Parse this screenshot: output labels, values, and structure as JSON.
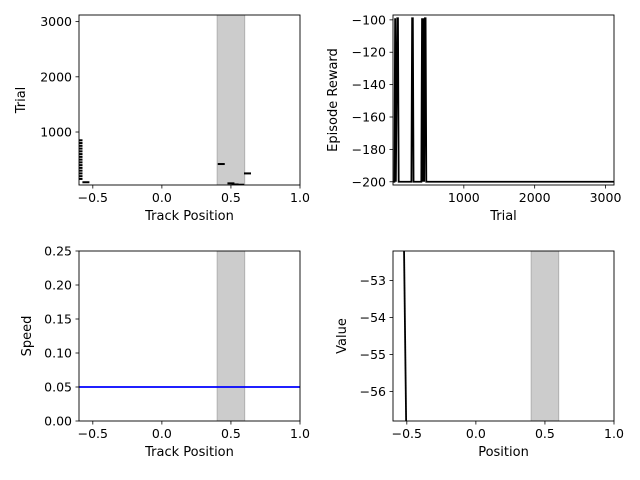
{
  "chart_data": [
    {
      "id": "trial-vs-position",
      "type": "scatter",
      "xlabel": "Track Position",
      "ylabel": "Trial",
      "xlim": [
        -0.6,
        1.0
      ],
      "ylim": [
        40,
        3120
      ],
      "xticks": [
        -0.5,
        0.0,
        0.5,
        1.0
      ],
      "xtick_labels": [
        "−0.5",
        "0.0",
        "0.5",
        "1.0"
      ],
      "yticks": [
        1000,
        2000,
        3000
      ],
      "ytick_labels": [
        "1000",
        "2000",
        "3000"
      ],
      "goal_region": [
        0.4,
        0.6
      ],
      "goal_color": "#cccccc",
      "color": "#000000",
      "points": [
        {
          "x": -0.6,
          "y": 850
        },
        {
          "x": -0.6,
          "y": 800
        },
        {
          "x": -0.6,
          "y": 750
        },
        {
          "x": -0.6,
          "y": 700
        },
        {
          "x": -0.6,
          "y": 650
        },
        {
          "x": -0.6,
          "y": 600
        },
        {
          "x": -0.6,
          "y": 550
        },
        {
          "x": -0.6,
          "y": 500
        },
        {
          "x": -0.6,
          "y": 450
        },
        {
          "x": -0.6,
          "y": 400
        },
        {
          "x": -0.6,
          "y": 350
        },
        {
          "x": -0.6,
          "y": 300
        },
        {
          "x": -0.6,
          "y": 250
        },
        {
          "x": -0.6,
          "y": 200
        },
        {
          "x": -0.6,
          "y": 150
        },
        {
          "x": -0.55,
          "y": 90
        },
        {
          "x": 0.43,
          "y": 420
        },
        {
          "x": 0.5,
          "y": 70
        },
        {
          "x": 0.53,
          "y": 50
        },
        {
          "x": 0.57,
          "y": 45
        },
        {
          "x": 0.62,
          "y": 250
        }
      ]
    },
    {
      "id": "reward-vs-trial",
      "type": "line",
      "xlabel": "Trial",
      "ylabel": "Episode Reward",
      "xlim": [
        0,
        3120
      ],
      "ylim": [
        -202,
        -97
      ],
      "xticks": [
        1000,
        2000,
        3000
      ],
      "xtick_labels": [
        "1000",
        "2000",
        "3000"
      ],
      "yticks": [
        -200,
        -180,
        -160,
        -140,
        -120,
        -100
      ],
      "ytick_labels": [
        "−200",
        "−180",
        "−160",
        "−140",
        "−120",
        "−100"
      ],
      "color": "#000000",
      "x": [
        0,
        20,
        30,
        40,
        60,
        70,
        80,
        100,
        260,
        270,
        280,
        290,
        400,
        410,
        420,
        430,
        440,
        450,
        460,
        470,
        3120
      ],
      "y": [
        -200,
        -200,
        -99,
        -200,
        -99,
        -99,
        -200,
        -200,
        -200,
        -99,
        -99,
        -200,
        -200,
        -99,
        -200,
        -99,
        -200,
        -99,
        -99,
        -200,
        -200
      ]
    },
    {
      "id": "speed-vs-position",
      "type": "line",
      "xlabel": "Track Position",
      "ylabel": "Speed",
      "xlim": [
        -0.6,
        1.0
      ],
      "ylim": [
        0.0,
        0.25
      ],
      "xticks": [
        -0.5,
        0.0,
        0.5,
        1.0
      ],
      "xtick_labels": [
        "−0.5",
        "0.0",
        "0.5",
        "1.0"
      ],
      "yticks": [
        0.0,
        0.05,
        0.1,
        0.15,
        0.2,
        0.25
      ],
      "ytick_labels": [
        "0.00",
        "0.05",
        "0.10",
        "0.15",
        "0.20",
        "0.25"
      ],
      "goal_region": [
        0.4,
        0.6
      ],
      "goal_color": "#cccccc",
      "color": "#0000ff",
      "x": [
        -0.6,
        1.0
      ],
      "y": [
        0.05,
        0.05
      ]
    },
    {
      "id": "value-vs-position",
      "type": "line",
      "xlabel": "Position",
      "ylabel": "Value",
      "xlim": [
        -0.6,
        1.0
      ],
      "ylim": [
        -56.8,
        -52.2
      ],
      "xticks": [
        -0.5,
        0.0,
        0.5,
        1.0
      ],
      "xtick_labels": [
        "−0.5",
        "0.0",
        "0.5",
        "1.0"
      ],
      "yticks": [
        -56,
        -55,
        -54,
        -53
      ],
      "ytick_labels": [
        "−56",
        "−55",
        "−54",
        "−53"
      ],
      "goal_region": [
        0.4,
        0.6
      ],
      "goal_color": "#cccccc",
      "color": "#000000",
      "x": [
        -0.52,
        -0.505
      ],
      "y": [
        -52.2,
        -56.8
      ]
    }
  ]
}
